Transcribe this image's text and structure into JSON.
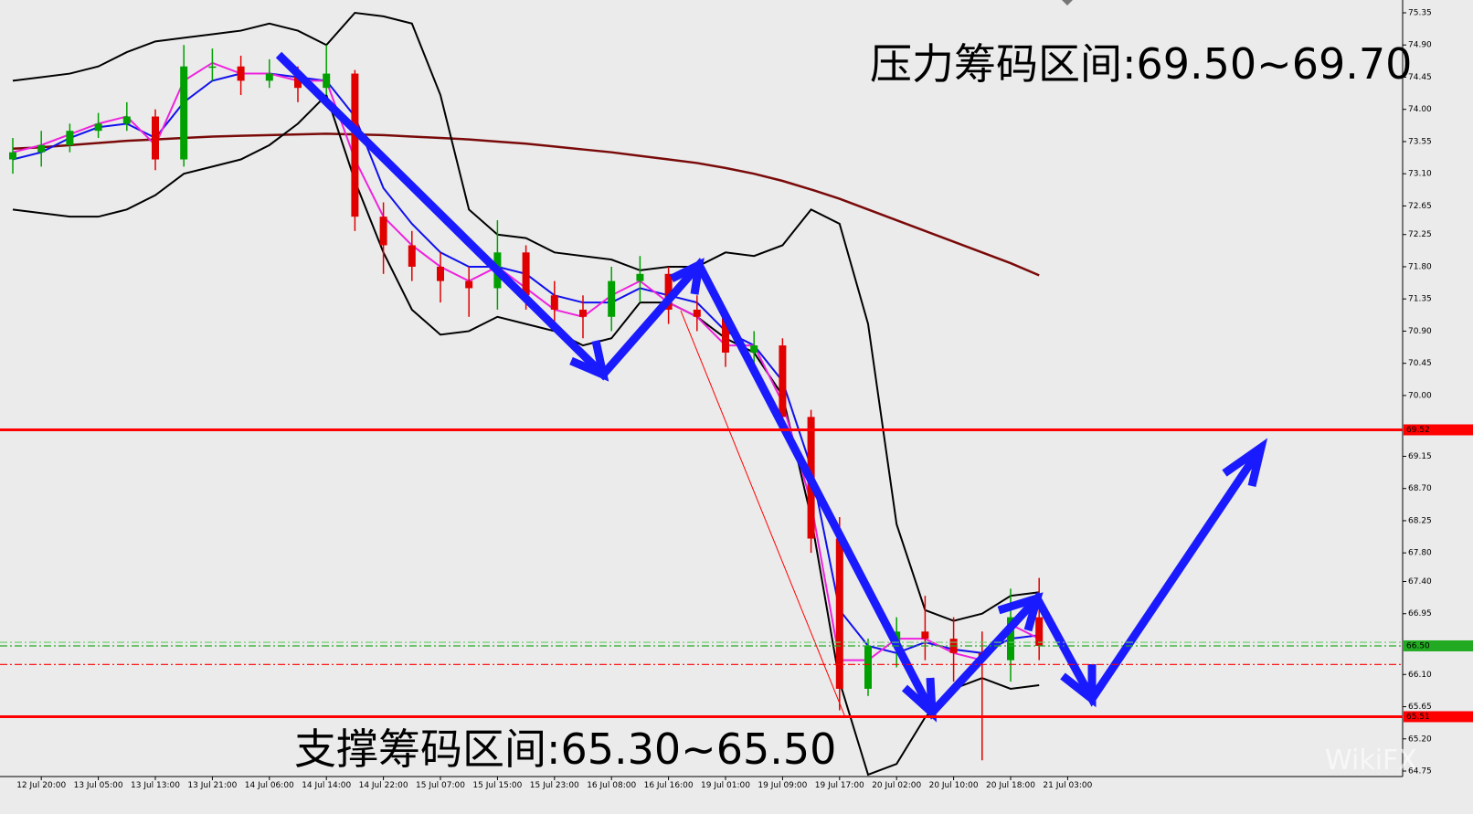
{
  "chart_data": {
    "type": "candlestick",
    "annotations": [
      "压力筹码区间:69.50~69.70",
      "支撑筹码区间:65.30~65.50"
    ],
    "watermark": "WikiFX",
    "categories": [
      null,
      "12 Jul 20:00",
      null,
      "13 Jul 05:00",
      null,
      "13 Jul 13:00",
      null,
      "13 Jul 21:00",
      null,
      "14 Jul 06:00",
      null,
      "14 Jul 14:00",
      null,
      "14 Jul 22:00",
      null,
      "15 Jul 07:00",
      null,
      "15 Jul 15:00",
      null,
      "15 Jul 23:00",
      null,
      "16 Jul 08:00",
      null,
      "16 Jul 16:00",
      null,
      "19 Jul 01:00",
      null,
      "19 Jul 09:00",
      null,
      "19 Jul 17:00",
      null,
      "20 Jul 02:00",
      null,
      "20 Jul 10:00",
      null,
      "20 Jul 18:00",
      null,
      "21 Jul 03:00"
    ],
    "open": [
      73.3,
      73.4,
      73.5,
      73.7,
      73.8,
      73.9,
      73.3,
      74.6,
      74.6,
      74.4,
      74.5,
      74.3,
      74.5,
      72.5,
      72.1,
      71.8,
      71.6,
      71.5,
      72.0,
      71.4,
      71.2,
      71.1,
      71.6,
      71.7,
      71.2,
      71.1,
      70.6,
      70.7,
      69.7,
      68.0,
      65.9,
      66.5,
      66.7,
      66.6,
      66.4,
      66.3,
      66.9,
      null
    ],
    "high": [
      73.6,
      73.7,
      73.8,
      73.95,
      74.1,
      74.0,
      74.9,
      74.85,
      74.75,
      74.7,
      74.6,
      74.9,
      74.55,
      72.7,
      72.3,
      72.0,
      71.8,
      72.45,
      72.1,
      71.6,
      71.4,
      71.8,
      71.95,
      71.8,
      71.4,
      71.2,
      70.9,
      70.8,
      69.8,
      68.3,
      66.6,
      66.9,
      67.2,
      66.9,
      66.7,
      67.3,
      67.45,
      null
    ],
    "low": [
      73.1,
      73.2,
      73.4,
      73.6,
      73.7,
      73.15,
      73.2,
      74.4,
      74.2,
      74.3,
      74.1,
      74.2,
      72.3,
      71.7,
      71.6,
      71.3,
      71.1,
      71.2,
      71.2,
      71.0,
      70.8,
      70.9,
      71.3,
      71.0,
      70.9,
      70.4,
      70.4,
      69.5,
      67.8,
      65.6,
      65.8,
      66.2,
      66.3,
      66.0,
      64.9,
      66.0,
      66.3,
      null
    ],
    "close": [
      73.4,
      73.5,
      73.7,
      73.8,
      73.9,
      73.3,
      74.6,
      74.6,
      74.4,
      74.5,
      74.3,
      74.5,
      72.5,
      72.1,
      71.8,
      71.6,
      71.5,
      72.0,
      71.4,
      71.2,
      71.1,
      71.6,
      71.7,
      71.2,
      71.1,
      70.6,
      70.7,
      69.7,
      68.0,
      65.9,
      66.5,
      66.7,
      66.6,
      66.4,
      66.3,
      66.9,
      66.5,
      null
    ],
    "up_color": "#00a000",
    "down_color": "#e00000",
    "lines": [
      {
        "color": "#7a0a0a",
        "values": [
          73.45,
          73.47,
          73.5,
          73.53,
          73.56,
          73.58,
          73.6,
          73.62,
          73.63,
          73.64,
          73.65,
          73.66,
          73.65,
          73.64,
          73.62,
          73.6,
          73.58,
          73.55,
          73.52,
          73.48,
          73.44,
          73.4,
          73.35,
          73.3,
          73.25,
          73.18,
          73.1,
          73.0,
          72.88,
          72.75,
          72.6,
          72.45,
          72.3,
          72.15,
          72.0,
          71.85,
          71.68,
          null
        ]
      },
      {
        "color": "#000000",
        "values": [
          74.4,
          74.45,
          74.5,
          74.6,
          74.8,
          74.95,
          75.0,
          75.05,
          75.1,
          75.2,
          75.1,
          74.9,
          75.35,
          75.3,
          75.2,
          74.2,
          72.6,
          72.25,
          72.2,
          72.0,
          71.95,
          71.9,
          71.75,
          71.8,
          71.8,
          72.0,
          71.95,
          72.1,
          72.6,
          72.4,
          71.0,
          68.2,
          67.0,
          66.85,
          66.95,
          67.2,
          67.25,
          null
        ]
      },
      {
        "color": "#000000",
        "values": [
          72.6,
          72.55,
          72.5,
          72.5,
          72.6,
          72.8,
          73.1,
          73.2,
          73.3,
          73.5,
          73.8,
          74.2,
          73.0,
          72.0,
          71.2,
          70.85,
          70.9,
          71.1,
          71.0,
          70.9,
          70.7,
          70.8,
          71.3,
          71.3,
          71.1,
          70.8,
          70.6,
          70.0,
          68.3,
          66.0,
          64.7,
          64.85,
          65.5,
          65.9,
          66.05,
          65.9,
          65.95,
          null
        ]
      },
      {
        "color": "#1010ee",
        "values": [
          73.3,
          73.4,
          73.6,
          73.75,
          73.8,
          73.6,
          74.1,
          74.4,
          74.5,
          74.5,
          74.45,
          74.4,
          73.9,
          72.9,
          72.4,
          72.0,
          71.8,
          71.8,
          71.7,
          71.4,
          71.3,
          71.3,
          71.5,
          71.4,
          71.3,
          70.9,
          70.7,
          70.2,
          69.0,
          67.0,
          66.5,
          66.4,
          66.55,
          66.45,
          66.4,
          66.6,
          66.65,
          null
        ]
      },
      {
        "color": "#ee22dd",
        "values": [
          73.4,
          73.5,
          73.65,
          73.8,
          73.9,
          73.5,
          74.4,
          74.65,
          74.5,
          74.5,
          74.4,
          74.4,
          73.3,
          72.5,
          72.1,
          71.8,
          71.6,
          71.8,
          71.5,
          71.2,
          71.1,
          71.4,
          71.6,
          71.3,
          71.1,
          70.7,
          70.7,
          69.9,
          68.5,
          66.3,
          66.3,
          66.6,
          66.6,
          66.4,
          66.3,
          66.8,
          66.6,
          null
        ]
      }
    ],
    "levels": [
      {
        "value": 69.52,
        "color": "#ff0000",
        "style": "solid",
        "boxed": true
      },
      {
        "value": 65.51,
        "color": "#ff0000",
        "style": "solid",
        "boxed": true
      },
      {
        "value": {
          "value": 66.5,
          "label": "66.50"
        },
        "color": "#22aa22",
        "style": "dashed",
        "boxed": true
      },
      {
        "value": 66.55,
        "color": "#66cc66",
        "style": "dashed",
        "boxed": false
      },
      {
        "value": 66.24,
        "color": "#ff0000",
        "style": "dashed",
        "boxed": false
      }
    ],
    "ylim": [
      64.75,
      75.35
    ],
    "yticks": [
      75.35,
      {
        "value": 74.9,
        "label": "74.90"
      },
      74.45,
      {
        "value": 74.0,
        "label": "74.00"
      },
      73.55,
      {
        "value": 73.1,
        "label": "73.10"
      },
      72.65,
      72.25,
      {
        "value": 71.8,
        "label": "71.80"
      },
      71.35,
      {
        "value": 70.9,
        "label": "70.90"
      },
      70.45,
      {
        "value": 70.0,
        "label": "70.00"
      },
      69.15,
      {
        "value": 68.7,
        "label": "68.70"
      },
      68.25,
      {
        "value": 67.8,
        "label": "67.80"
      },
      {
        "value": 67.4,
        "label": "67.40"
      },
      66.95,
      {
        "value": 66.1,
        "label": "66.10"
      },
      65.65,
      {
        "value": 65.2,
        "label": "65.20"
      },
      64.75
    ]
  }
}
